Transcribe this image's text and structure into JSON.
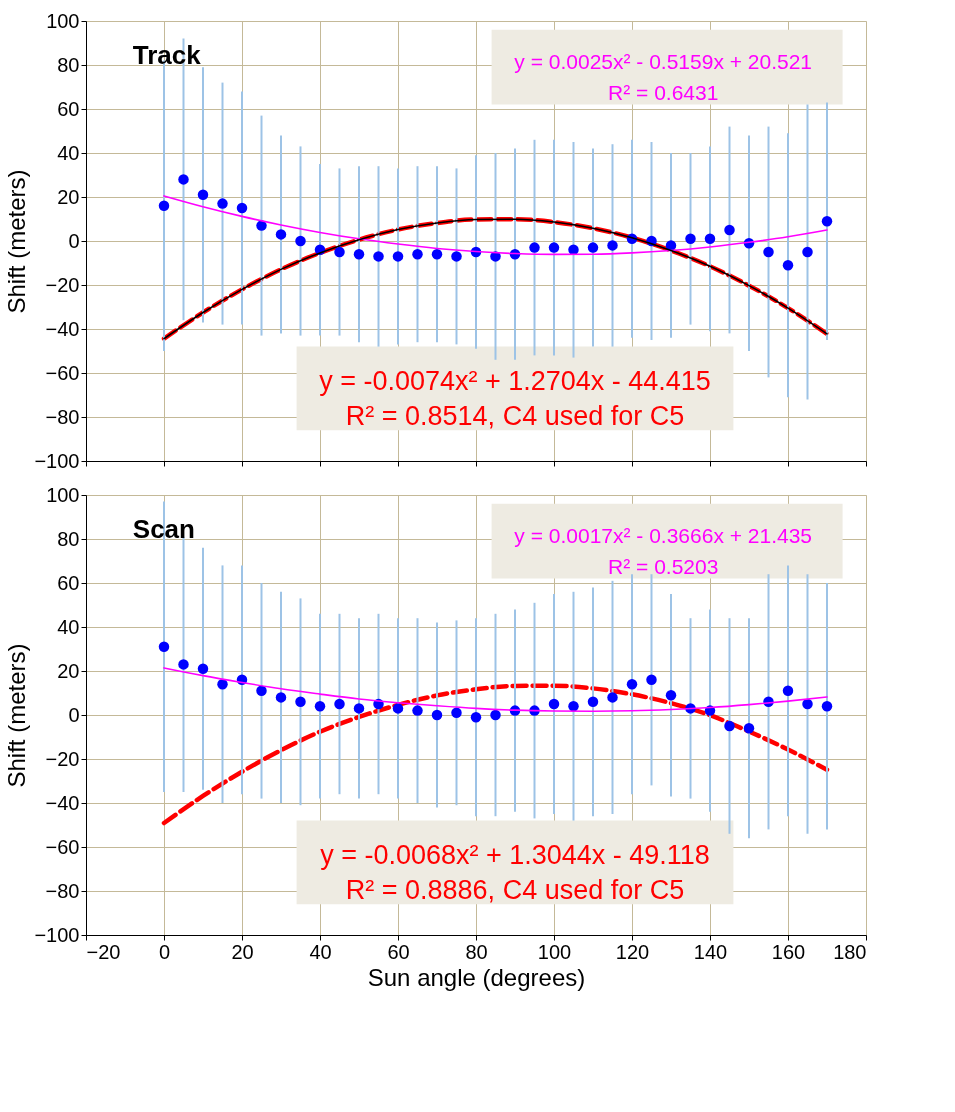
{
  "chart_data": [
    {
      "type": "scatter",
      "ylabel": "Shift (meters)",
      "xlim": [
        -20,
        180
      ],
      "ylim": [
        -100,
        100
      ],
      "xticks": [
        -20,
        0,
        20,
        40,
        60,
        80,
        100,
        120,
        140,
        160,
        180
      ],
      "yticks": [
        -100,
        -80,
        -60,
        -40,
        -20,
        0,
        20,
        40,
        60,
        80,
        100
      ],
      "grid": true,
      "tick_labels": "y",
      "annotations": [
        "Track",
        "y = 0.0025x² - 0.5159x + 20.521",
        "R² = 0.6431",
        "y = -0.0074x² + 1.2704x - 44.415",
        "R² = 0.8514, C4 used for C5"
      ],
      "series": [
        {
          "marker": "circle",
          "color": "#0000ff",
          "x": [
            0,
            5,
            10,
            15,
            20,
            25,
            30,
            35,
            40,
            45,
            50,
            55,
            60,
            65,
            70,
            75,
            80,
            85,
            90,
            95,
            100,
            105,
            110,
            115,
            120,
            125,
            130,
            135,
            140,
            145,
            150,
            155,
            160,
            165,
            170
          ],
          "values": [
            16,
            28,
            21,
            17,
            15,
            7,
            3,
            0,
            -4,
            -5,
            -6,
            -7,
            -7,
            -6,
            -6,
            -7,
            -5,
            -7,
            -6,
            -3,
            -3,
            -4,
            -3,
            -2,
            1,
            0,
            -2,
            1,
            1,
            5,
            -1,
            -5,
            -11,
            -5,
            9
          ],
          "errors": [
            66,
            64,
            58,
            55,
            53,
            50,
            45,
            43,
            39,
            38,
            40,
            41,
            40,
            40,
            40,
            40,
            44,
            47,
            48,
            49,
            49,
            49,
            45,
            46,
            45,
            45,
            42,
            39,
            42,
            47,
            49,
            57,
            60,
            67,
            54
          ]
        },
        {
          "type": "line",
          "color": "#ff00ff",
          "x": [
            0,
            10,
            20,
            30,
            40,
            50,
            60,
            70,
            80,
            90,
            100,
            110,
            120,
            130,
            140,
            150,
            160,
            170
          ],
          "values": [
            20.5,
            15.6,
            11.2,
            7.3,
            3.9,
            1.0,
            -1.4,
            -3.4,
            -4.8,
            -5.7,
            -6.1,
            -6.0,
            -5.4,
            -4.3,
            -2.7,
            -0.6,
            1.9,
            5.0
          ]
        },
        {
          "type": "line",
          "color": "#000000",
          "x": [
            0,
            10,
            20,
            30,
            40,
            50,
            60,
            70,
            80,
            90,
            100,
            110,
            120,
            130,
            140,
            150,
            160,
            170
          ],
          "values": [
            -44.4,
            -32.5,
            -22.0,
            -12.9,
            -5.4,
            0.6,
            5.2,
            8.2,
            9.8,
            9.9,
            8.6,
            5.8,
            1.5,
            -4.3,
            -11.5,
            -20.3,
            -30.5,
            -42.2
          ]
        },
        {
          "type": "line",
          "color": "#ff0000",
          "line_style": "dashed",
          "x": [
            0,
            10,
            20,
            30,
            40,
            50,
            60,
            70,
            80,
            90,
            100,
            110,
            120,
            130,
            140,
            150,
            160,
            170
          ],
          "values": [
            -44.4,
            -32.5,
            -22.0,
            -12.9,
            -5.4,
            0.6,
            5.2,
            8.2,
            9.8,
            9.9,
            8.6,
            5.8,
            1.5,
            -4.3,
            -11.5,
            -20.3,
            -30.5,
            -42.2
          ]
        }
      ]
    },
    {
      "type": "scatter",
      "xlabel": "Sun angle (degrees)",
      "ylabel": "Shift (meters)",
      "xlim": [
        -20,
        180
      ],
      "ylim": [
        -100,
        100
      ],
      "xticks": [
        -20,
        0,
        20,
        40,
        60,
        80,
        100,
        120,
        140,
        160,
        180
      ],
      "yticks": [
        -100,
        -80,
        -60,
        -40,
        -20,
        0,
        20,
        40,
        60,
        80,
        100
      ],
      "grid": true,
      "annotations": [
        "Scan",
        "y = 0.0017x² - 0.3666x + 21.435",
        "R² = 0.5203",
        "y = -0.0068x² + 1.3044x - 49.118",
        "R² = 0.8886, C4 used for C5"
      ],
      "series": [
        {
          "marker": "circle",
          "color": "#0000ff",
          "x": [
            0,
            5,
            10,
            15,
            20,
            25,
            30,
            35,
            40,
            45,
            50,
            55,
            60,
            65,
            70,
            75,
            80,
            85,
            90,
            95,
            100,
            105,
            110,
            115,
            120,
            125,
            130,
            135,
            140,
            145,
            150,
            155,
            160,
            165,
            170
          ],
          "values": [
            31,
            23,
            21,
            14,
            16,
            11,
            8,
            6,
            4,
            5,
            3,
            5,
            3,
            2,
            0,
            1,
            -1,
            0,
            2,
            2,
            5,
            4,
            6,
            8,
            14,
            16,
            9,
            3,
            2,
            -5,
            -6,
            6,
            11,
            5,
            4
          ],
          "errors": [
            66,
            58,
            55,
            54,
            52,
            49,
            48,
            47,
            42,
            41,
            41,
            41,
            41,
            42,
            42,
            42,
            45,
            46,
            46,
            49,
            50,
            52,
            52,
            53,
            50,
            48,
            46,
            41,
            46,
            49,
            50,
            58,
            57,
            59,
            56
          ]
        },
        {
          "type": "line",
          "color": "#ff00ff",
          "x": [
            0,
            10,
            20,
            30,
            40,
            50,
            60,
            70,
            80,
            90,
            100,
            110,
            120,
            130,
            140,
            150,
            160,
            170
          ],
          "values": [
            21.4,
            17.9,
            14.8,
            11.9,
            9.5,
            7.3,
            5.6,
            4.2,
            3.0,
            2.2,
            1.8,
            1.7,
            1.9,
            2.5,
            3.4,
            4.7,
            6.3,
            8.2
          ]
        },
        {
          "type": "line",
          "color": "#ff0000",
          "line_style": "dashed",
          "x": [
            0,
            10,
            20,
            30,
            40,
            50,
            60,
            70,
            80,
            90,
            100,
            110,
            120,
            130,
            140,
            150,
            160,
            170
          ],
          "values": [
            -49.1,
            -36.8,
            -25.8,
            -16.0,
            -7.6,
            -0.9,
            4.6,
            8.9,
            11.7,
            13.2,
            13.3,
            12.1,
            9.4,
            5.4,
            -0.1,
            -7.5,
            -15.7,
            -24.9
          ]
        }
      ]
    }
  ]
}
